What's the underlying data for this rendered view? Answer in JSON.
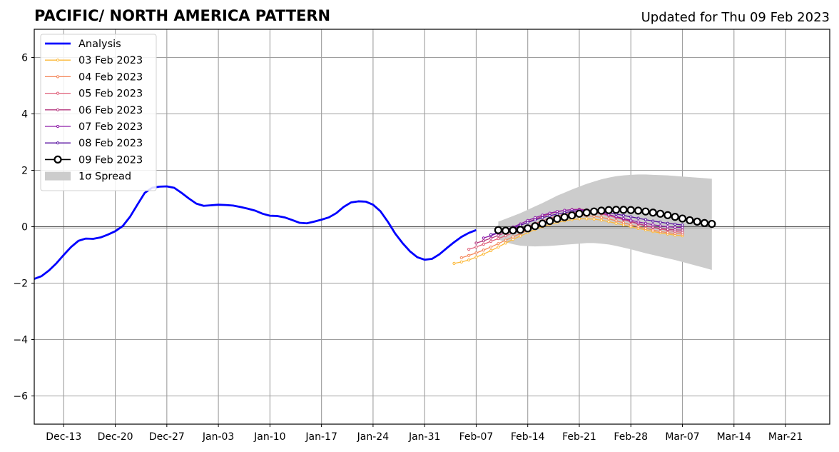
{
  "chart_data": {
    "type": "line",
    "title": "PACIFIC/ NORTH AMERICA PATTERN",
    "updated": "Updated for Thu 09 Feb 2023",
    "xlabel": "",
    "ylabel": "",
    "xlim": [
      "2022-12-09",
      "2023-03-27"
    ],
    "ylim": [
      -7,
      7
    ],
    "yticks": [
      -6,
      -4,
      -2,
      0,
      2,
      4,
      6
    ],
    "ytick_labels": [
      "−6",
      "−4",
      "−2",
      "0",
      "2",
      "4",
      "6"
    ],
    "xticks": [
      "2022-12-13",
      "2022-12-20",
      "2022-12-27",
      "2023-01-03",
      "2023-01-10",
      "2023-01-17",
      "2023-01-24",
      "2023-01-31",
      "2023-02-07",
      "2023-02-14",
      "2023-02-21",
      "2023-02-28",
      "2023-03-07",
      "2023-03-14",
      "2023-03-21"
    ],
    "xtick_labels": [
      "Dec-13",
      "Dec-20",
      "Dec-27",
      "Jan-03",
      "Jan-10",
      "Jan-17",
      "Jan-24",
      "Jan-31",
      "Feb-07",
      "Feb-14",
      "Feb-21",
      "Feb-28",
      "Mar-07",
      "Mar-14",
      "Mar-21"
    ],
    "grid": true,
    "legend_position": "top-left",
    "analysis": {
      "name": "Analysis",
      "color": "#0000ff",
      "start": "2022-12-09",
      "values": [
        -1.85,
        -1.75,
        -1.55,
        -1.3,
        -1.0,
        -0.72,
        -0.5,
        -0.42,
        -0.43,
        -0.38,
        -0.28,
        -0.16,
        0.02,
        0.35,
        0.78,
        1.2,
        1.38,
        1.42,
        1.43,
        1.38,
        1.2,
        1.0,
        0.82,
        0.74,
        0.76,
        0.78,
        0.77,
        0.75,
        0.7,
        0.64,
        0.57,
        0.46,
        0.39,
        0.38,
        0.33,
        0.24,
        0.14,
        0.12,
        0.18,
        0.25,
        0.33,
        0.48,
        0.7,
        0.86,
        0.9,
        0.89,
        0.78,
        0.55,
        0.18,
        -0.24,
        -0.58,
        -0.87,
        -1.08,
        -1.17,
        -1.14,
        -0.98,
        -0.76,
        -0.55,
        -0.36,
        -0.22,
        -0.12
      ]
    },
    "forecasts": [
      {
        "name": "03 Feb 2023",
        "color": "#fcb93a",
        "start": "2023-02-04",
        "values": [
          -1.3,
          -1.25,
          -1.18,
          -1.08,
          -0.97,
          -0.85,
          -0.72,
          -0.58,
          -0.45,
          -0.33,
          -0.21,
          -0.1,
          0.0,
          0.08,
          0.15,
          0.21,
          0.25,
          0.28,
          0.28,
          0.27,
          0.23,
          0.18,
          0.12,
          0.06,
          0.0,
          -0.06,
          -0.11,
          -0.17,
          -0.22,
          -0.26,
          -0.3,
          -0.32
        ]
      },
      {
        "name": "04 Feb 2023",
        "color": "#f5875a",
        "start": "2023-02-05",
        "values": [
          -1.1,
          -1.02,
          -0.93,
          -0.83,
          -0.72,
          -0.6,
          -0.48,
          -0.36,
          -0.24,
          -0.13,
          -0.02,
          0.08,
          0.17,
          0.25,
          0.31,
          0.36,
          0.39,
          0.39,
          0.37,
          0.33,
          0.28,
          0.21,
          0.14,
          0.07,
          0.0,
          -0.06,
          -0.12,
          -0.17,
          -0.21,
          -0.24,
          -0.26
        ]
      },
      {
        "name": "05 Feb 2023",
        "color": "#e0607a",
        "start": "2023-02-06",
        "values": [
          -0.8,
          -0.72,
          -0.62,
          -0.52,
          -0.42,
          -0.32,
          -0.22,
          -0.11,
          0.0,
          0.11,
          0.21,
          0.3,
          0.38,
          0.44,
          0.49,
          0.51,
          0.51,
          0.49,
          0.45,
          0.39,
          0.32,
          0.25,
          0.17,
          0.1,
          0.03,
          -0.03,
          -0.08,
          -0.13,
          -0.17,
          -0.2
        ]
      },
      {
        "name": "06 Feb 2023",
        "color": "#b5387f",
        "start": "2023-02-07",
        "values": [
          -0.58,
          -0.5,
          -0.41,
          -0.31,
          -0.2,
          -0.08,
          0.04,
          0.16,
          0.27,
          0.37,
          0.46,
          0.53,
          0.58,
          0.61,
          0.62,
          0.6,
          0.56,
          0.5,
          0.43,
          0.35,
          0.27,
          0.19,
          0.11,
          0.04,
          -0.02,
          -0.06,
          -0.09,
          -0.11,
          -0.12
        ]
      },
      {
        "name": "07 Feb 2023",
        "color": "#8e1ca8",
        "start": "2023-02-08",
        "values": [
          -0.4,
          -0.32,
          -0.22,
          -0.12,
          -0.01,
          0.1,
          0.22,
          0.32,
          0.41,
          0.48,
          0.54,
          0.58,
          0.6,
          0.6,
          0.58,
          0.54,
          0.48,
          0.42,
          0.36,
          0.29,
          0.23,
          0.17,
          0.12,
          0.07,
          0.03,
          0.0,
          -0.02,
          -0.03
        ]
      },
      {
        "name": "08 Feb 2023",
        "color": "#5812a0",
        "start": "2023-02-09",
        "values": [
          -0.28,
          -0.22,
          -0.14,
          -0.05,
          0.05,
          0.15,
          0.24,
          0.32,
          0.39,
          0.45,
          0.5,
          0.54,
          0.56,
          0.57,
          0.56,
          0.53,
          0.49,
          0.45,
          0.4,
          0.35,
          0.3,
          0.25,
          0.2,
          0.16,
          0.12,
          0.09,
          0.06
        ]
      },
      {
        "name": "09 Feb 2023",
        "color": "#000000",
        "start": "2023-02-10",
        "values": [
          -0.12,
          -0.14,
          -0.13,
          -0.11,
          -0.06,
          0.02,
          0.11,
          0.2,
          0.28,
          0.34,
          0.4,
          0.46,
          0.5,
          0.54,
          0.57,
          0.59,
          0.6,
          0.6,
          0.59,
          0.57,
          0.54,
          0.5,
          0.46,
          0.41,
          0.35,
          0.29,
          0.23,
          0.18,
          0.13,
          0.1
        ]
      }
    ],
    "spread": {
      "name": "1σ Spread",
      "color": "#cccccc",
      "start": "2023-02-10",
      "upper": [
        0.18,
        0.28,
        0.38,
        0.48,
        0.6,
        0.72,
        0.84,
        0.97,
        1.1,
        1.21,
        1.32,
        1.42,
        1.52,
        1.6,
        1.68,
        1.74,
        1.79,
        1.82,
        1.84,
        1.85,
        1.85,
        1.84,
        1.83,
        1.82,
        1.8,
        1.78,
        1.76,
        1.74,
        1.72,
        1.7
      ],
      "lower": [
        -0.45,
        -0.55,
        -0.62,
        -0.67,
        -0.69,
        -0.7,
        -0.69,
        -0.68,
        -0.66,
        -0.64,
        -0.62,
        -0.6,
        -0.58,
        -0.58,
        -0.6,
        -0.63,
        -0.68,
        -0.74,
        -0.8,
        -0.87,
        -0.94,
        -1.0,
        -1.06,
        -1.12,
        -1.18,
        -1.25,
        -1.32,
        -1.39,
        -1.46,
        -1.53
      ]
    }
  }
}
